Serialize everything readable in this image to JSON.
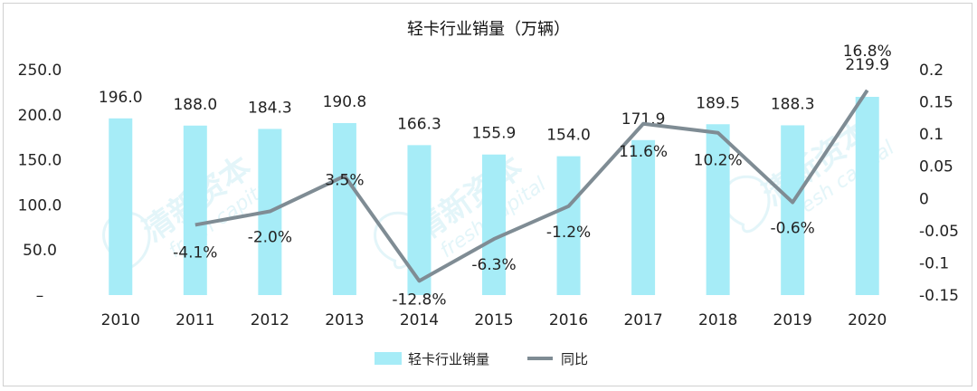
{
  "chart_data": {
    "type": "bar",
    "title": "轻卡行业销量（万辆）",
    "categories": [
      "2010",
      "2011",
      "2012",
      "2013",
      "2014",
      "2015",
      "2016",
      "2017",
      "2018",
      "2019",
      "2020"
    ],
    "series": [
      {
        "name": "轻卡行业销量",
        "type": "bar",
        "axis": "left",
        "values": [
          196.0,
          188.0,
          184.3,
          190.8,
          166.3,
          155.9,
          154.0,
          171.9,
          189.5,
          188.3,
          219.9
        ],
        "labels": [
          "196.0",
          "188.0",
          "184.3",
          "190.8",
          "166.3",
          "155.9",
          "154.0",
          "171.9",
          "189.5",
          "188.3",
          "219.9"
        ],
        "color": "#a6ecf7"
      },
      {
        "name": "同比",
        "type": "line",
        "axis": "right",
        "values": [
          null,
          -0.041,
          -0.02,
          0.035,
          -0.128,
          -0.063,
          -0.012,
          0.116,
          0.102,
          -0.006,
          0.168
        ],
        "labels": [
          "",
          "-4.1%",
          "-2.0%",
          "3.5%",
          "-12.8%",
          "-6.3%",
          "-1.2%",
          "11.6%",
          "10.2%",
          "-0.6%",
          "16.8%"
        ],
        "color": "#7f8c94"
      }
    ],
    "y_left": {
      "ylim": [
        0,
        250
      ],
      "ticks": [
        "–",
        "50.0",
        "100.0",
        "150.0",
        "200.0",
        "250.0"
      ],
      "tick_values": [
        0,
        50,
        100,
        150,
        200,
        250
      ]
    },
    "y_right": {
      "ylim": [
        -0.15,
        0.2
      ],
      "ticks": [
        "-0.15",
        "-0.1",
        "-0.05",
        "0",
        "0.05",
        "0.1",
        "0.15",
        "0.2"
      ],
      "tick_values": [
        -0.15,
        -0.1,
        -0.05,
        0,
        0.05,
        0.1,
        0.15,
        0.2
      ]
    },
    "grid": false,
    "legend": {
      "position": "bottom",
      "items": [
        "轻卡行业销量",
        "同比"
      ]
    },
    "watermark": "清新资本 fresh capital"
  }
}
